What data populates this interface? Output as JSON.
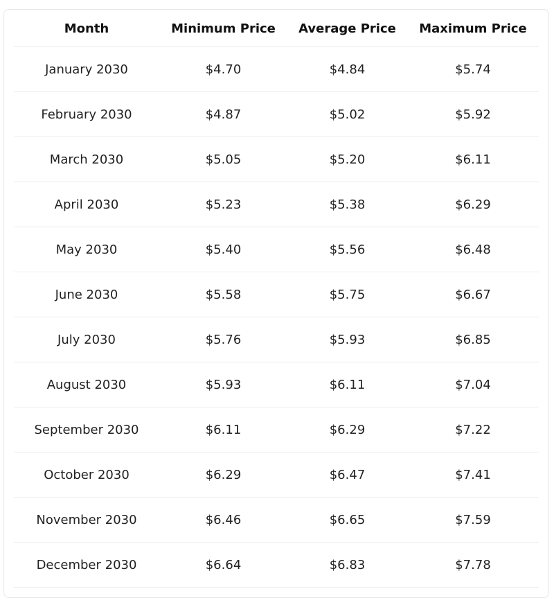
{
  "table": {
    "header": [
      "Month",
      "Minimum Price",
      "Average Price",
      "Maximum Price"
    ],
    "rows": [
      [
        "January 2030",
        "$4.70",
        "$4.84",
        "$5.74"
      ],
      [
        "February 2030",
        "$4.87",
        "$5.02",
        "$5.92"
      ],
      [
        "March 2030",
        "$5.05",
        "$5.20",
        "$6.11"
      ],
      [
        "April 2030",
        "$5.23",
        "$5.38",
        "$6.29"
      ],
      [
        "May 2030",
        "$5.40",
        "$5.56",
        "$6.48"
      ],
      [
        "June 2030",
        "$5.58",
        "$5.75",
        "$6.67"
      ],
      [
        "July 2030",
        "$5.76",
        "$5.93",
        "$6.85"
      ],
      [
        "August 2030",
        "$5.93",
        "$6.11",
        "$7.04"
      ],
      [
        "September 2030",
        "$6.11",
        "$6.29",
        "$7.22"
      ],
      [
        "October 2030",
        "$6.29",
        "$6.47",
        "$7.41"
      ],
      [
        "November 2030",
        "$6.46",
        "$6.65",
        "$7.59"
      ],
      [
        "December 2030",
        "$6.64",
        "$6.83",
        "$7.78"
      ]
    ]
  }
}
